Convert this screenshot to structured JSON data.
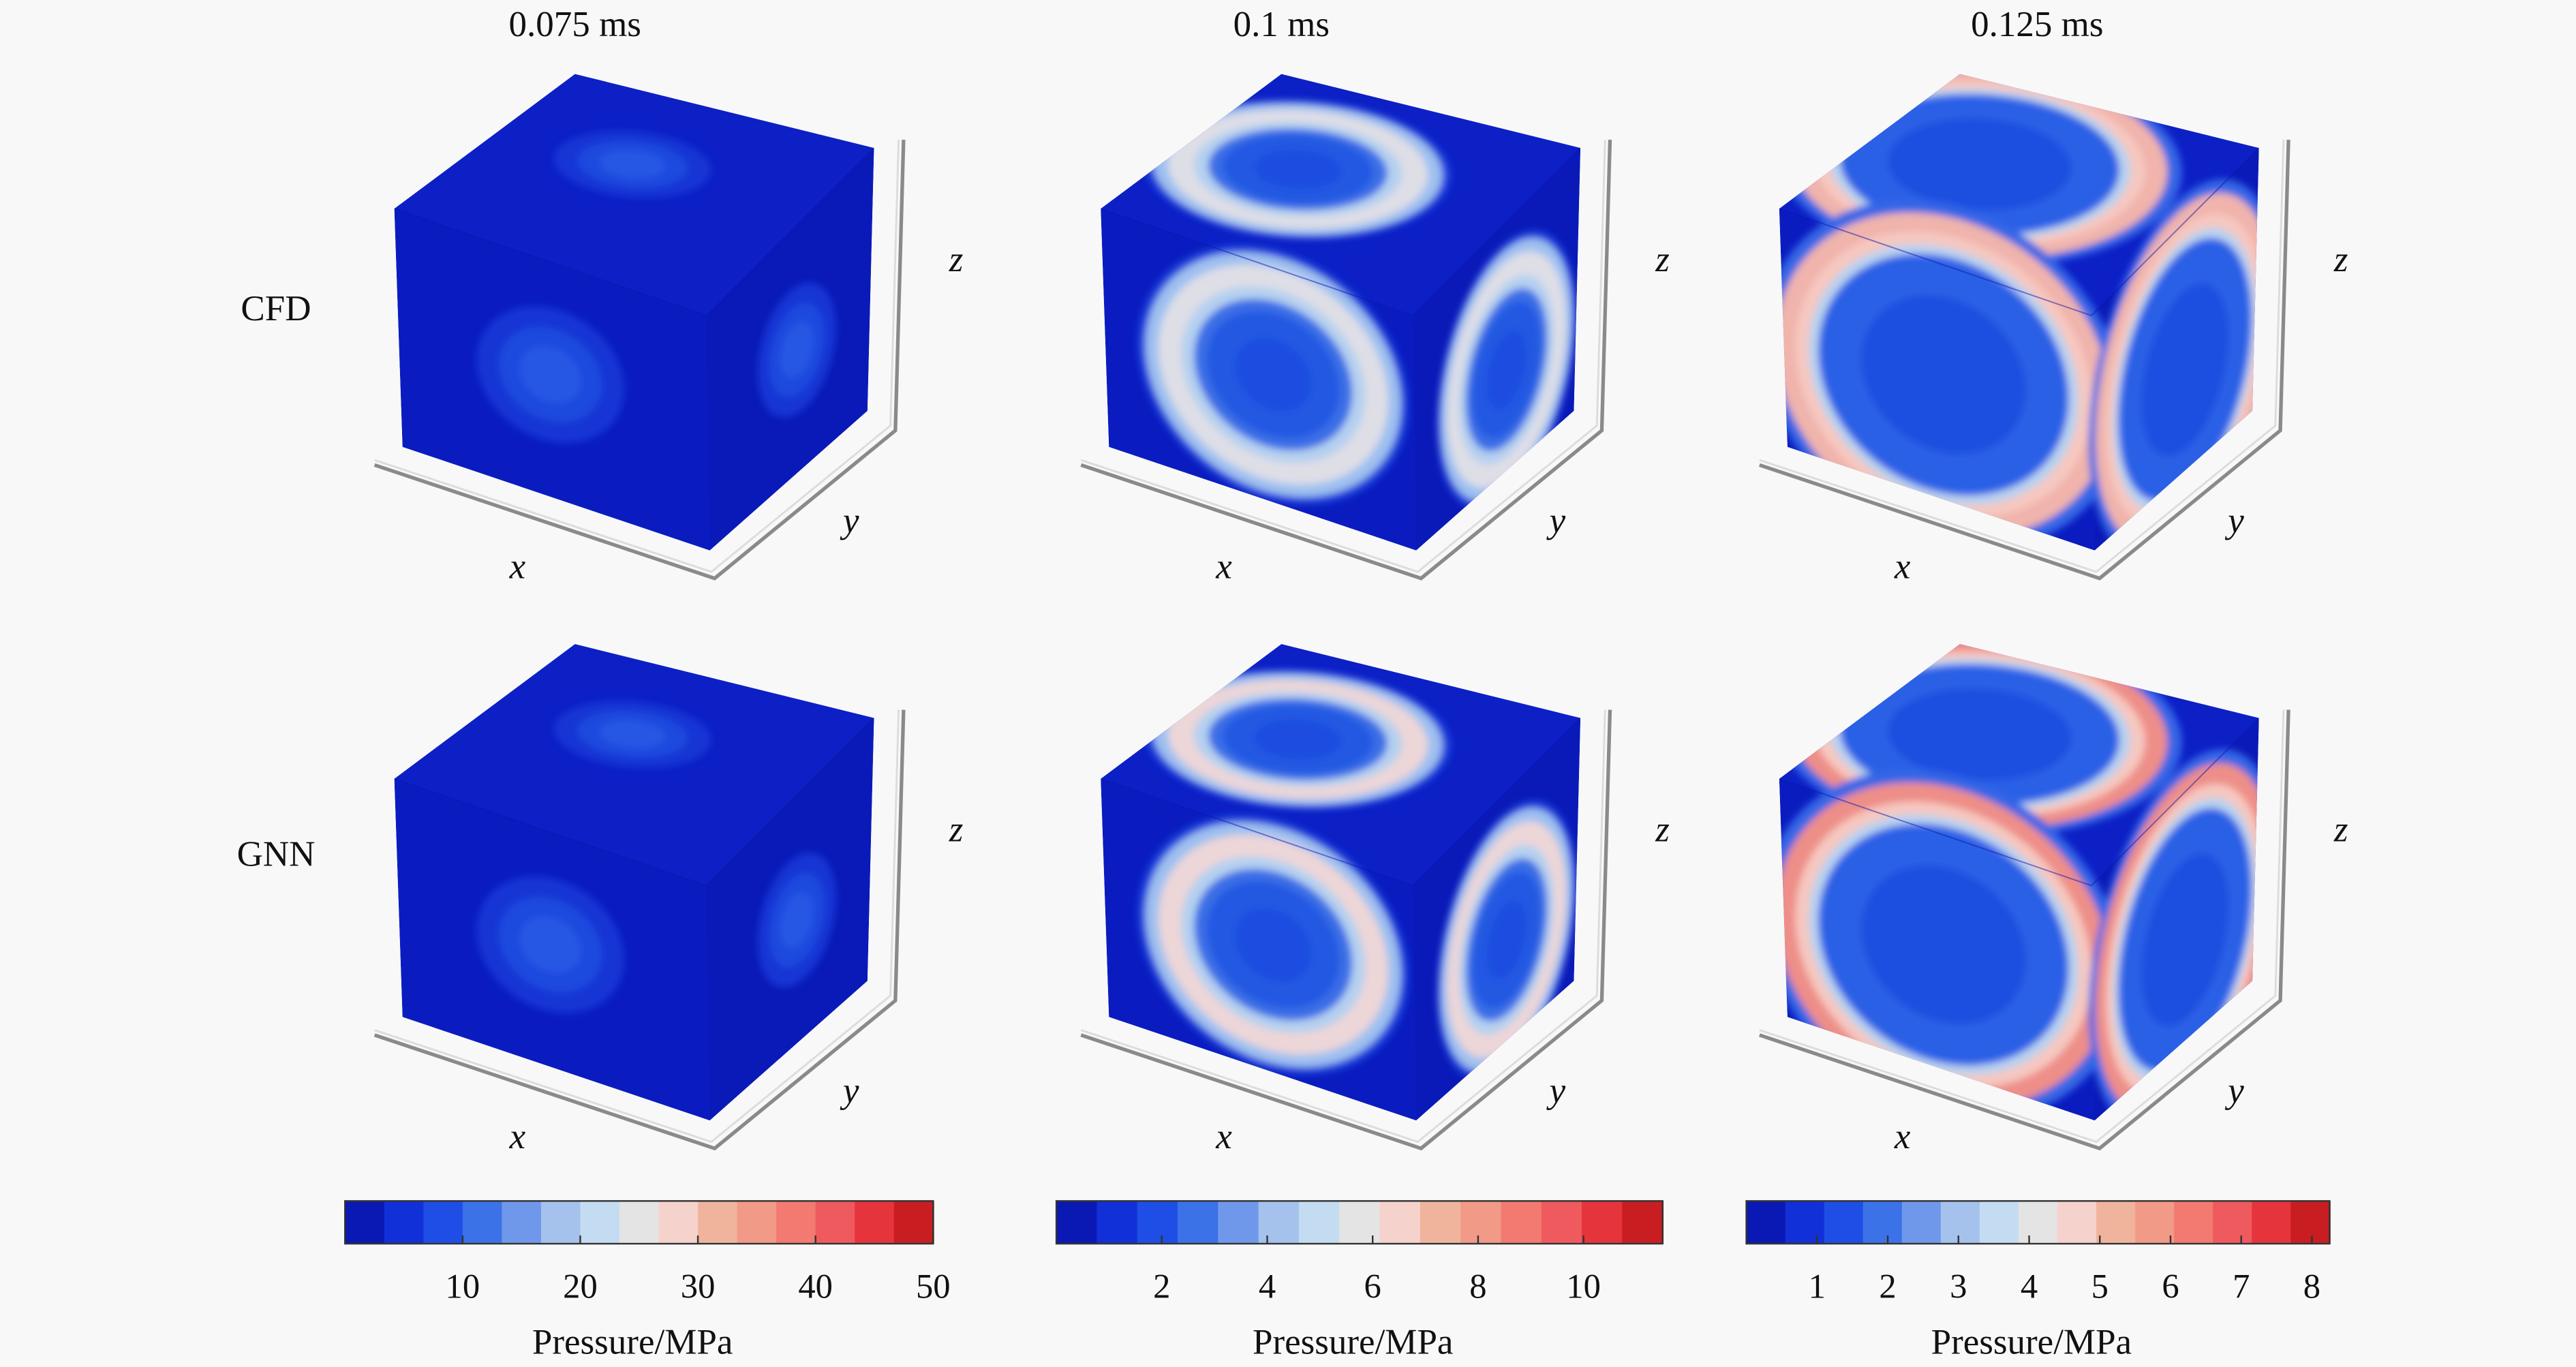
{
  "columns": [
    {
      "title": "0.075 ms"
    },
    {
      "title": "0.1 ms"
    },
    {
      "title": "0.125 ms"
    }
  ],
  "rows": [
    {
      "label": "CFD"
    },
    {
      "label": "GNN"
    }
  ],
  "axes": {
    "x": "x",
    "y": "y",
    "z": "z"
  },
  "colorbars": [
    {
      "label": "Pressure/MPa",
      "range": [
        0,
        50
      ],
      "ticks": [
        "10",
        "20",
        "30",
        "40",
        "50"
      ]
    },
    {
      "label": "Pressure/MPa",
      "range": [
        0,
        11.5
      ],
      "ticks": [
        "2",
        "4",
        "6",
        "8",
        "10"
      ]
    },
    {
      "label": "Pressure/MPa",
      "range": [
        0,
        8.25
      ],
      "ticks": [
        "1",
        "2",
        "3",
        "4",
        "5",
        "6",
        "7",
        "8"
      ]
    }
  ],
  "colormap": [
    "#0a18b4",
    "#1230d8",
    "#1f4ee6",
    "#3c72e8",
    "#6f98ea",
    "#a4c2ec",
    "#c4dcf2",
    "#e4e4e4",
    "#f6d2cc",
    "#f0b49c",
    "#f29a88",
    "#f27a70",
    "#ee5a5e",
    "#e6343c",
    "#c81e22"
  ]
}
